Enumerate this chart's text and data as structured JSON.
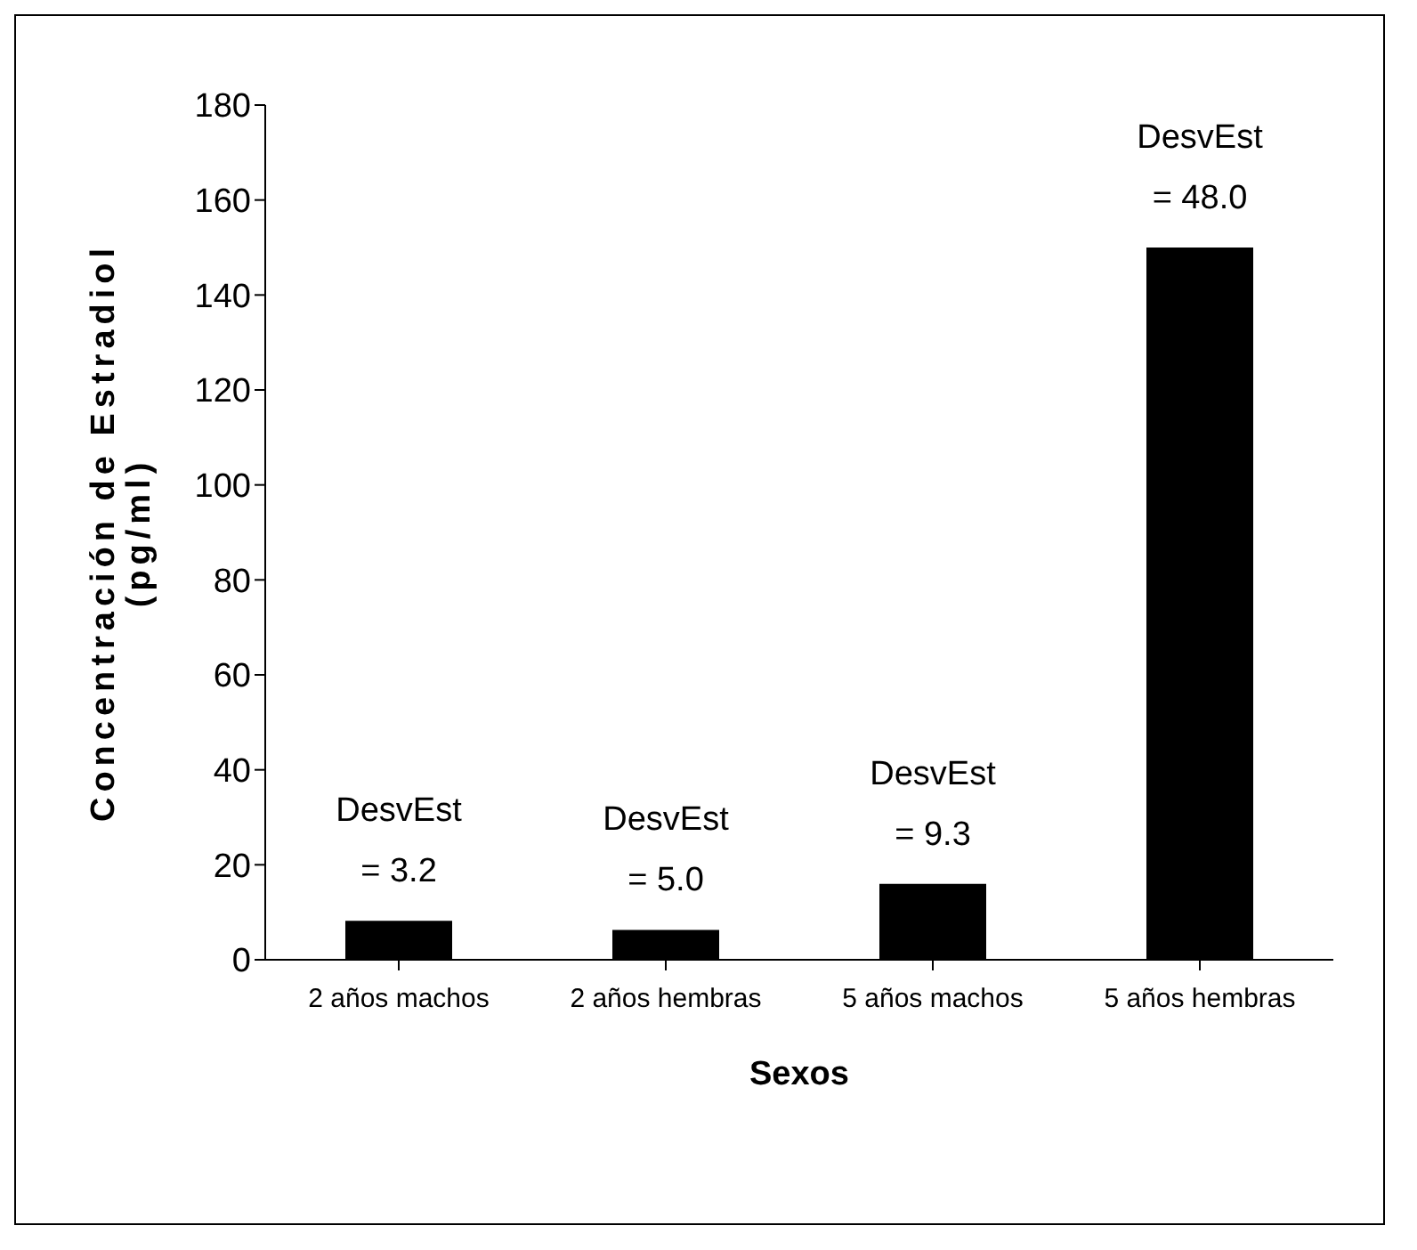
{
  "chart_data": {
    "type": "bar",
    "xlabel": "Sexos",
    "ylabel": "Concentración de Estradiol\n(pg/ml)",
    "categories": [
      "2 años machos",
      "2 años hembras",
      "5 años machos",
      "5 años hembras"
    ],
    "values": [
      8.2,
      6.3,
      16,
      150
    ],
    "color": "#000000",
    "ylim": [
      0,
      180
    ],
    "yticks": [
      0,
      20,
      40,
      60,
      80,
      100,
      120,
      140,
      160,
      180
    ],
    "grid": false,
    "annotations": [
      {
        "text": "DesvEst\n= 3.2",
        "x": "2 años machos",
        "y": 8.2
      },
      {
        "text": "DesvEst\n= 5.0",
        "x": "2 años hembras",
        "y": 6.3
      },
      {
        "text": "DesvEst\n= 9.3",
        "x": "5 años machos",
        "y": 16
      },
      {
        "text": "DesvEst\n= 48.0",
        "x": "5 años hembras",
        "y": 150
      }
    ]
  }
}
